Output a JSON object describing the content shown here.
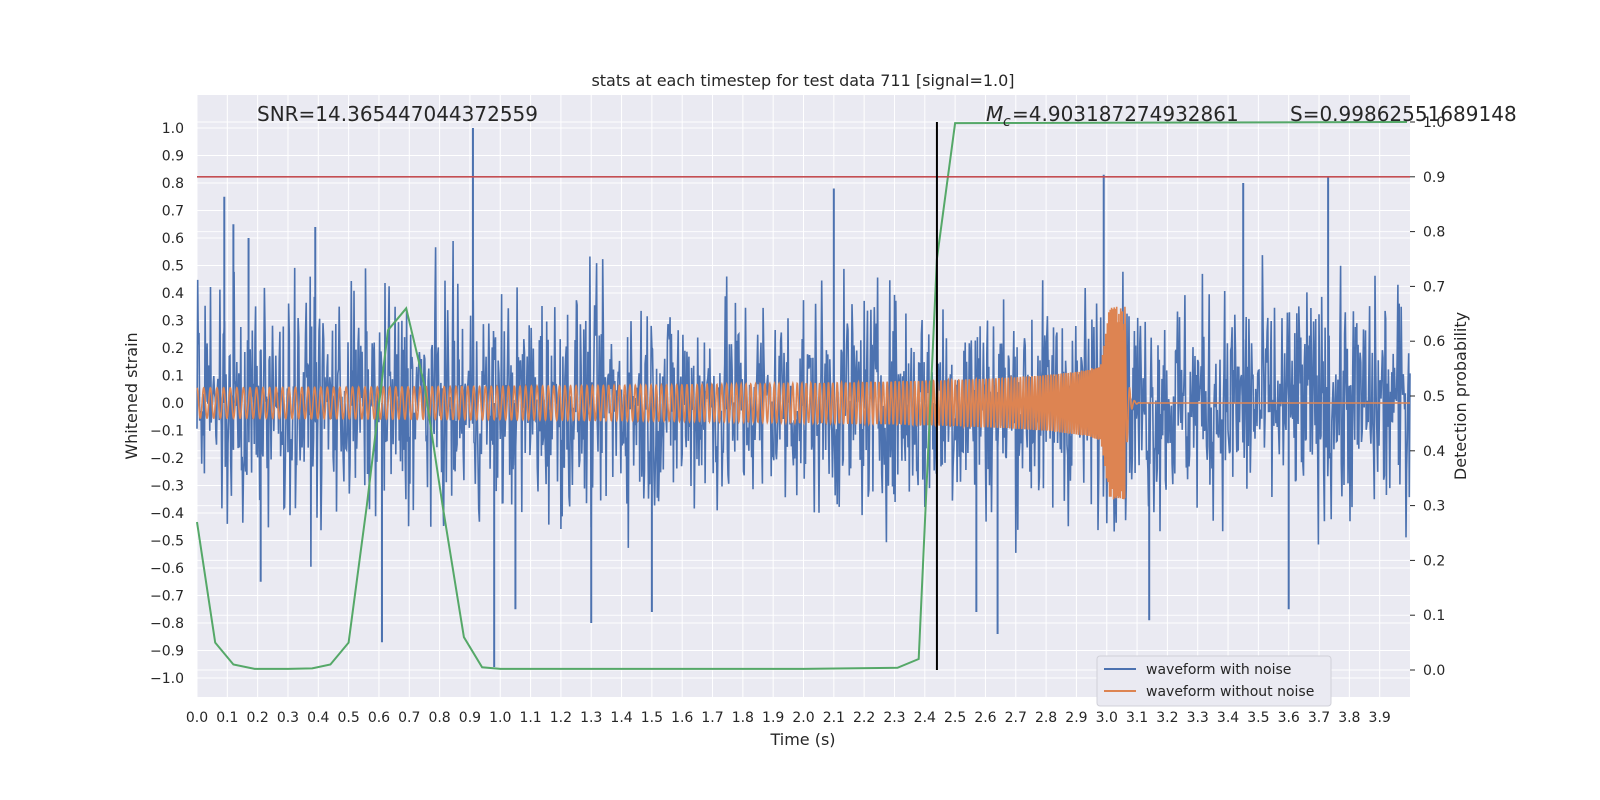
{
  "chart_data": {
    "type": "line",
    "title": "stats at each timestep for test data 711 [signal=1.0]",
    "xlabel": "Time (s)",
    "ylabel_left": "Whitened strain",
    "ylabel_right": "Detection probability",
    "xlim": [
      0.0,
      4.0
    ],
    "ylim_left": [
      -1.07,
      1.1
    ],
    "ylim_right": [
      -0.05,
      1.0
    ],
    "x_ticks": [
      "0.0",
      "0.1",
      "0.2",
      "0.3",
      "0.4",
      "0.5",
      "0.6",
      "0.7",
      "0.8",
      "0.9",
      "1.0",
      "1.1",
      "1.2",
      "1.3",
      "1.4",
      "1.5",
      "1.6",
      "1.7",
      "1.8",
      "1.9",
      "2.0",
      "2.1",
      "2.2",
      "2.3",
      "2.4",
      "2.5",
      "2.6",
      "2.7",
      "2.8",
      "2.9",
      "3.0",
      "3.1",
      "3.2",
      "3.3",
      "3.4",
      "3.5",
      "3.6",
      "3.7",
      "3.8",
      "3.9"
    ],
    "y_ticks_left": [
      "1.0",
      "0.9",
      "0.8",
      "0.7",
      "0.6",
      "0.5",
      "0.4",
      "0.3",
      "0.2",
      "0.1",
      "0.0",
      "−0.1",
      "−0.2",
      "−0.3",
      "−0.4",
      "−0.5",
      "−0.6",
      "−0.7",
      "−0.8",
      "−0.9",
      "−1.0"
    ],
    "y_ticks_right": [
      "1.0",
      "0.9",
      "0.8",
      "0.7",
      "0.6",
      "0.5",
      "0.4",
      "0.3",
      "0.2",
      "0.1",
      "0.0"
    ],
    "annotations": {
      "snr": "SNR=14.365447044372559",
      "mc": "=4.903187274932861",
      "mc_symbol": "M",
      "mc_subscript": "c",
      "s": "S=0.99862551689148"
    },
    "threshold_right": 0.9,
    "event_time": 2.44,
    "series": [
      {
        "name": "waveform with noise",
        "color": "#4c72b0",
        "kind": "noise",
        "typical_amplitude": 0.22,
        "spikes": [
          {
            "x": 0.09,
            "y": 0.75
          },
          {
            "x": 0.12,
            "y": 0.65
          },
          {
            "x": 0.17,
            "y": 0.6
          },
          {
            "x": 0.21,
            "y": -0.65
          },
          {
            "x": 0.39,
            "y": 0.64
          },
          {
            "x": 0.61,
            "y": -0.87
          },
          {
            "x": 0.91,
            "y": 1.0
          },
          {
            "x": 0.98,
            "y": -0.96
          },
          {
            "x": 1.05,
            "y": -0.75
          },
          {
            "x": 1.3,
            "y": -0.8
          },
          {
            "x": 1.5,
            "y": -0.76
          },
          {
            "x": 2.1,
            "y": 0.78
          },
          {
            "x": 2.57,
            "y": -0.76
          },
          {
            "x": 2.64,
            "y": -0.84
          },
          {
            "x": 2.99,
            "y": 0.83
          },
          {
            "x": 3.14,
            "y": -0.79
          },
          {
            "x": 3.45,
            "y": 0.8
          },
          {
            "x": 3.6,
            "y": -0.75
          },
          {
            "x": 3.73,
            "y": 0.82
          }
        ]
      },
      {
        "name": "waveform without noise",
        "color": "#dd8452",
        "kind": "chirp",
        "base_amplitude": 0.055,
        "peak_amplitude": 0.35,
        "merger_time": 3.06
      },
      {
        "name": "Detection probability",
        "color": "#55a868",
        "axis": "right",
        "x": [
          0.0,
          0.06,
          0.12,
          0.19,
          0.3,
          0.38,
          0.44,
          0.5,
          0.56,
          0.63,
          0.69,
          0.75,
          0.81,
          0.88,
          0.94,
          1.0,
          2.0,
          2.31,
          2.38,
          2.44,
          2.5,
          3.99
        ],
        "y": [
          0.27,
          0.05,
          0.01,
          0.002,
          0.002,
          0.003,
          0.01,
          0.05,
          0.3,
          0.62,
          0.66,
          0.52,
          0.3,
          0.06,
          0.005,
          0.002,
          0.002,
          0.004,
          0.02,
          0.75,
          0.998,
          1.0
        ]
      }
    ],
    "legend": {
      "placement": "lower-right",
      "entries": [
        "waveform with noise",
        "waveform without noise"
      ]
    },
    "grid": true
  }
}
